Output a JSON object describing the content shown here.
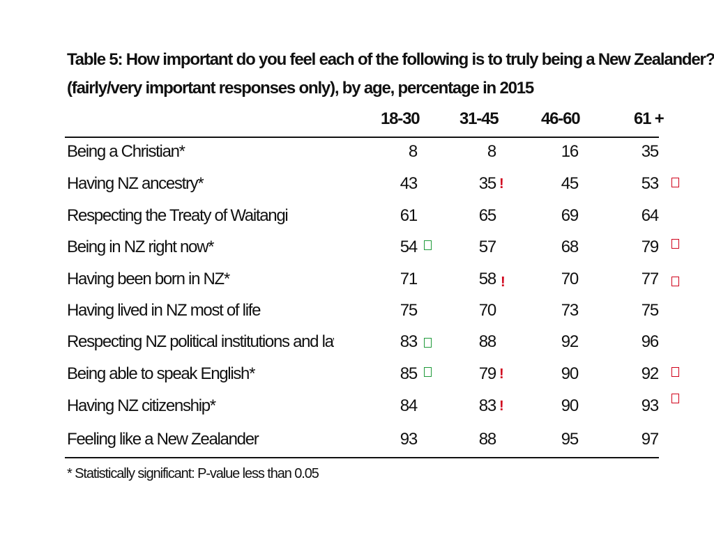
{
  "title": {
    "line1": "Table 5: How important do you feel each of the following is to  truly being a New Zealander?",
    "line2": "(fairly/very important responses only), by age, percentage in 2015"
  },
  "columns": [
    "18-30",
    "31-45",
    "46-60",
    "61 +"
  ],
  "rows": [
    {
      "label": "Being a Christian*",
      "values": [
        "8",
        "8",
        "16",
        "35"
      ]
    },
    {
      "label": "Having NZ ancestry*",
      "values": [
        "43",
        "35",
        "45",
        "53"
      ]
    },
    {
      "label": "Respecting the Treaty of Waitangi",
      "values": [
        "61",
        "65",
        "69",
        "64"
      ]
    },
    {
      "label": "Being in NZ right now*",
      "values": [
        "54",
        "57",
        "68",
        "79"
      ]
    },
    {
      "label": "Having been born in NZ*",
      "values": [
        "71",
        "58",
        "70",
        "77"
      ]
    },
    {
      "label": "Having lived in NZ most of life",
      "values": [
        "75",
        "70",
        "73",
        "75"
      ]
    },
    {
      "label": "Respecting NZ political institutions and laws*",
      "values": [
        "83",
        "88",
        "92",
        "96"
      ]
    },
    {
      "label": "Being able to speak English*",
      "values": [
        "85",
        "79",
        "90",
        "92"
      ]
    },
    {
      "label": "Having NZ citizenship*",
      "values": [
        "84",
        "83",
        "90",
        "93"
      ]
    },
    {
      "label": "Feeling like a New Zealander",
      "values": [
        "93",
        "88",
        "95",
        "97"
      ]
    }
  ],
  "markers": {
    "exclamation": "!",
    "colors": {
      "exclamation": "#d0021b",
      "green_box": "#1f9a3a",
      "red_box": "#d0021b"
    }
  },
  "footnote": "* Statistically significant: P-value less than 0.05"
}
